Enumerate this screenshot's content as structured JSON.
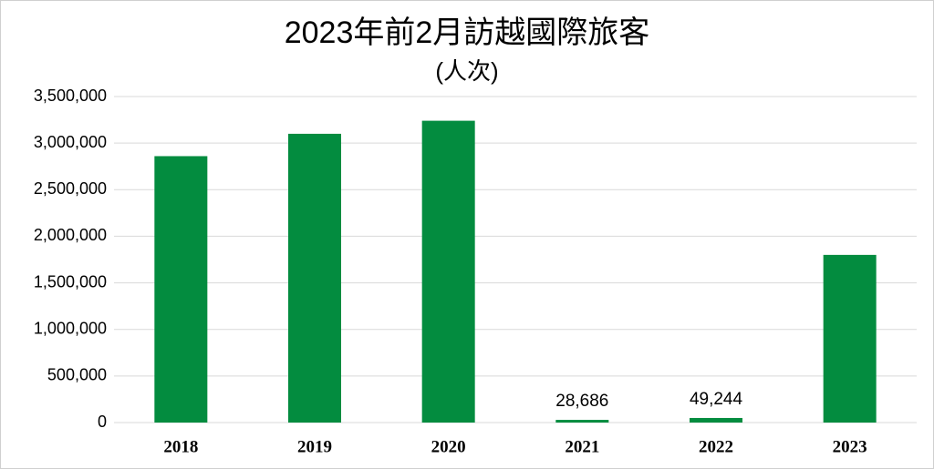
{
  "chart_data": {
    "type": "bar",
    "title": "2023年前2月訪越國際旅客",
    "subtitle": "(人次)",
    "categories": [
      "2018",
      "2019",
      "2020",
      "2021",
      "2022",
      "2023"
    ],
    "values": [
      2860000,
      3100000,
      3240000,
      28686,
      49244,
      1800000
    ],
    "value_labels": [
      null,
      null,
      null,
      "28,686",
      "49,244",
      null
    ],
    "color": "#038c3f",
    "ylim": [
      0,
      3500000
    ],
    "yticks": [
      0,
      {
        "value": 500000,
        "label": "500,000"
      },
      {
        "value": 1000000,
        "label": "1,000,000"
      },
      {
        "value": 1500000,
        "label": "1,500,000"
      },
      {
        "value": 2000000,
        "label": "2,000,000"
      },
      {
        "value": 2500000,
        "label": "2,500,000"
      },
      {
        "value": 3000000,
        "label": "3,000,000"
      },
      {
        "value": 3500000,
        "label": "3,500,000"
      }
    ],
    "grid": true
  }
}
